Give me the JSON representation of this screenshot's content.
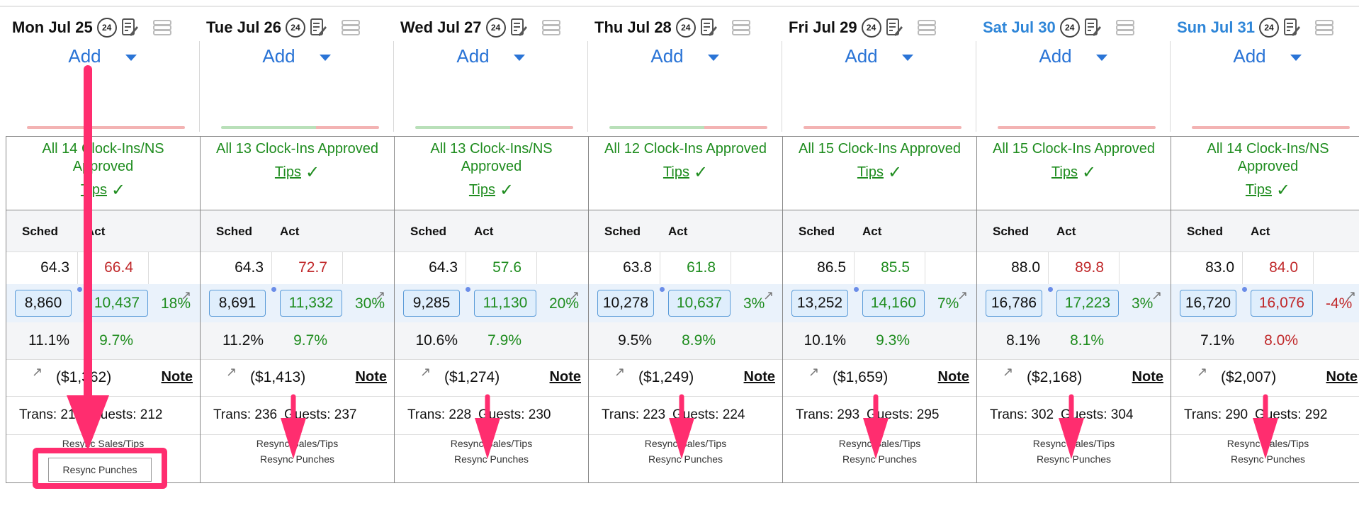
{
  "days": [
    {
      "date": "Mon Jul 25",
      "weekend": false,
      "approved": "All 14 Clock-Ins/NS Approved",
      "hours_sched": "64.3",
      "hours_act": "66.4",
      "hours_act_color": "red",
      "sales_sched": "8,860",
      "sales_act": "10,437",
      "sales_act_color": "green",
      "sales_pct": "18%",
      "pct_sched": "11.1%",
      "pct_act": "9.7%",
      "pct_act_color": "green",
      "labor": "($1,362)",
      "trans": "Trans: 210",
      "guests": "Guests: 212"
    },
    {
      "date": "Tue Jul 26",
      "weekend": false,
      "approved": "All 13 Clock-Ins Approved",
      "hours_sched": "64.3",
      "hours_act": "72.7",
      "hours_act_color": "red",
      "sales_sched": "8,691",
      "sales_act": "11,332",
      "sales_act_color": "green",
      "sales_pct": "30%",
      "pct_sched": "11.2%",
      "pct_act": "9.7%",
      "pct_act_color": "green",
      "labor": "($1,413)",
      "trans": "Trans: 236",
      "guests": "Guests: 237"
    },
    {
      "date": "Wed Jul 27",
      "weekend": false,
      "approved": "All 13 Clock-Ins/NS Approved",
      "hours_sched": "64.3",
      "hours_act": "57.6",
      "hours_act_color": "green",
      "sales_sched": "9,285",
      "sales_act": "11,130",
      "sales_act_color": "green",
      "sales_pct": "20%",
      "pct_sched": "10.6%",
      "pct_act": "7.9%",
      "pct_act_color": "green",
      "labor": "($1,274)",
      "trans": "Trans: 228",
      "guests": "Guests: 230"
    },
    {
      "date": "Thu Jul 28",
      "weekend": false,
      "approved": "All 12 Clock-Ins Approved",
      "hours_sched": "63.8",
      "hours_act": "61.8",
      "hours_act_color": "green",
      "sales_sched": "10,278",
      "sales_act": "10,637",
      "sales_act_color": "green",
      "sales_pct": "3%",
      "pct_sched": "9.5%",
      "pct_act": "8.9%",
      "pct_act_color": "green",
      "labor": "($1,249)",
      "trans": "Trans: 223",
      "guests": "Guests: 224"
    },
    {
      "date": "Fri Jul 29",
      "weekend": false,
      "approved": "All 15 Clock-Ins Approved",
      "hours_sched": "86.5",
      "hours_act": "85.5",
      "hours_act_color": "green",
      "sales_sched": "13,252",
      "sales_act": "14,160",
      "sales_act_color": "green",
      "sales_pct": "7%",
      "pct_sched": "10.1%",
      "pct_act": "9.3%",
      "pct_act_color": "green",
      "labor": "($1,659)",
      "trans": "Trans: 293",
      "guests": "Guests: 295"
    },
    {
      "date": "Sat Jul 30",
      "weekend": true,
      "approved": "All 15 Clock-Ins Approved",
      "hours_sched": "88.0",
      "hours_act": "89.8",
      "hours_act_color": "red",
      "sales_sched": "16,786",
      "sales_act": "17,223",
      "sales_act_color": "green",
      "sales_pct": "3%",
      "pct_sched": "8.1%",
      "pct_act": "8.1%",
      "pct_act_color": "green",
      "labor": "($2,168)",
      "trans": "Trans: 302",
      "guests": "Guests: 304"
    },
    {
      "date": "Sun Jul 31",
      "weekend": true,
      "approved": "All 14 Clock-Ins/NS Approved",
      "hours_sched": "83.0",
      "hours_act": "84.0",
      "hours_act_color": "red",
      "sales_sched": "16,720",
      "sales_act": "16,076",
      "sales_act_color": "red",
      "sales_pct": "-4%",
      "pct_sched": "7.1%",
      "pct_act": "8.0%",
      "pct_act_color": "red",
      "labor": "($2,007)",
      "trans": "Trans: 290",
      "guests": "Guests: 292"
    }
  ],
  "labels": {
    "add": "Add",
    "tips": "Tips",
    "sched": "Sched",
    "act": "Act",
    "note": "Note",
    "resync_sales": "Resync Sales/Tips",
    "resync_punches": "Resync Punches",
    "clock_24": "24"
  },
  "colors": {
    "accent": "#2a74d6",
    "weekend": "#2f86d8",
    "good": "#1e8c1e",
    "bad": "#c0282a",
    "annotation": "#ff2d6f"
  },
  "icons": [
    "24-hour-icon",
    "edit-note-icon",
    "stack-icon",
    "arrow-up-right-icon",
    "check-icon",
    "caret-down-icon"
  ]
}
